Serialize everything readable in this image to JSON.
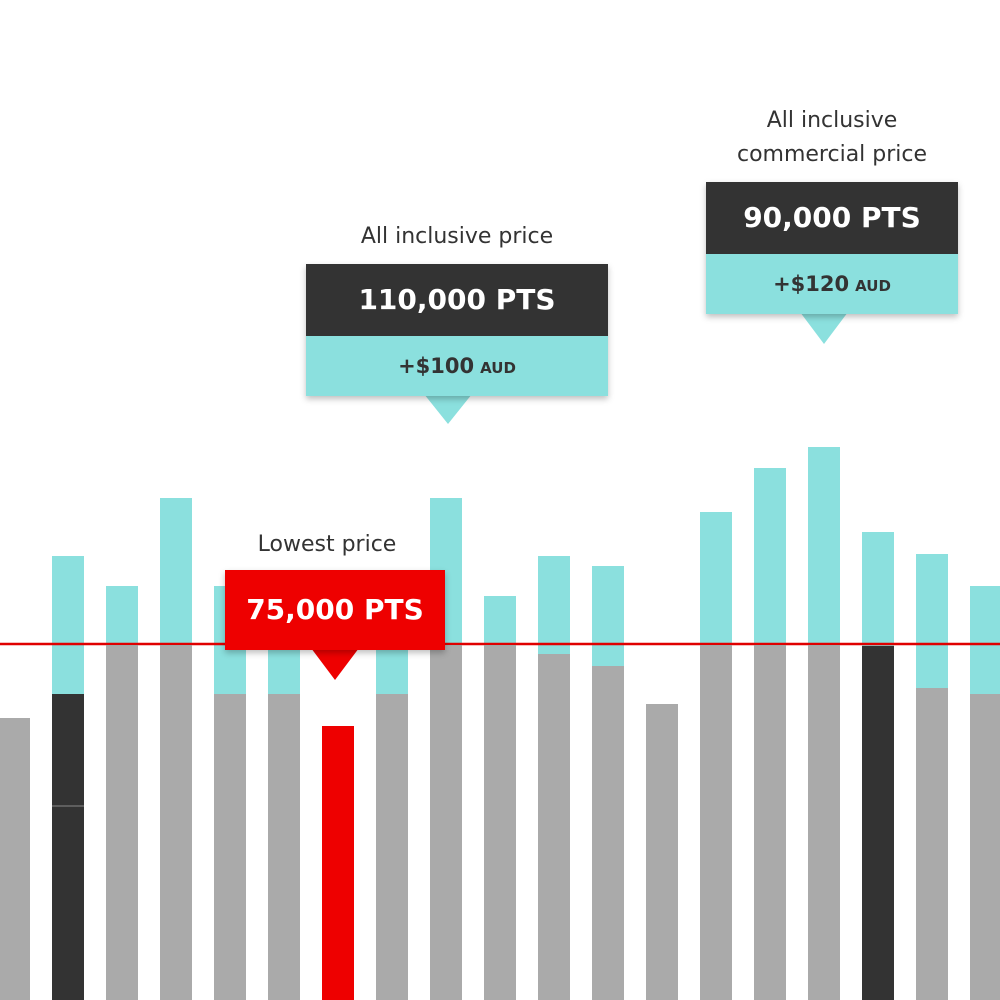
{
  "callouts": [
    {
      "label": "All inclusive price",
      "price": "110,000 PTS",
      "extra": "+$100",
      "currency": "AUD"
    },
    {
      "label_lines": [
        "All inclusive",
        "commercial price"
      ],
      "price": "90,000 PTS",
      "extra": "+$120",
      "currency": "AUD"
    },
    {
      "label": "Lowest price",
      "price": "75,000 PTS"
    }
  ]
}
